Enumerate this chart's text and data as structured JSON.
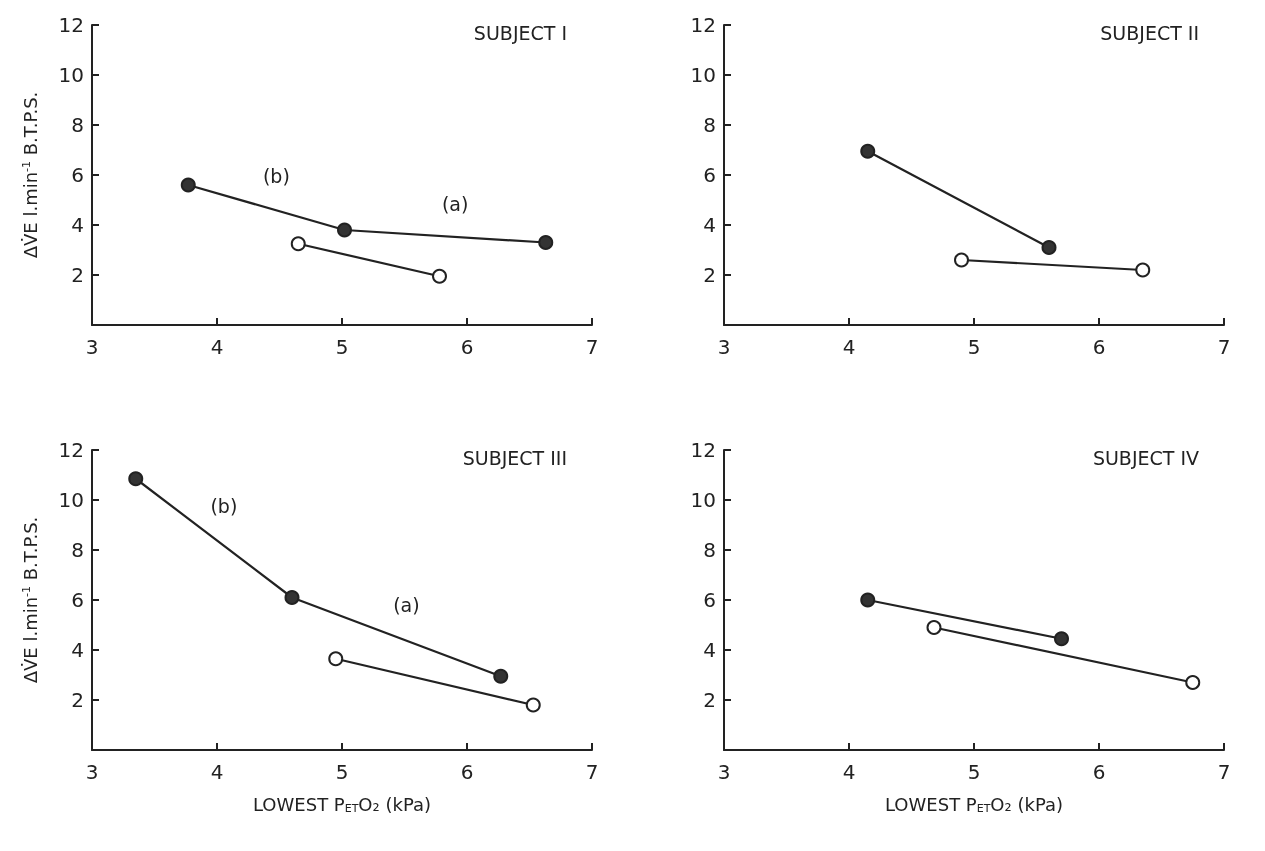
{
  "chart_data": [
    {
      "type": "line",
      "title": "SUBJECT I",
      "ylabel": "ΔV̇E l.min$^{-1}$ B.T.P.S.",
      "xlim": [
        3,
        7
      ],
      "xticks": [
        3,
        4,
        5,
        6,
        7
      ],
      "ylim": [
        0,
        12
      ],
      "yticks": [
        2,
        4,
        6,
        8,
        10,
        12
      ],
      "grid": false,
      "marker": "circle",
      "annotations": [
        "(b)",
        "(a)"
      ],
      "series": [
        {
          "color": "#333333",
          "x": [
            3.77,
            5.02,
            6.63
          ],
          "values": [
            5.6,
            3.8,
            3.3
          ]
        },
        {
          "color": "#ffffff",
          "x": [
            4.65,
            5.78
          ],
          "values": [
            3.25,
            1.95
          ]
        }
      ]
    },
    {
      "type": "line",
      "title": "SUBJECT II",
      "xlim": [
        3,
        7
      ],
      "xticks": [
        3,
        4,
        5,
        6,
        7
      ],
      "ylim": [
        0,
        12
      ],
      "yticks": [
        2,
        4,
        6,
        8,
        10,
        12
      ],
      "grid": false,
      "marker": "circle",
      "series": [
        {
          "color": "#333333",
          "x": [
            4.15,
            5.6
          ],
          "values": [
            6.95,
            3.1
          ]
        },
        {
          "color": "#ffffff",
          "x": [
            4.9,
            6.35
          ],
          "values": [
            2.6,
            2.2
          ]
        }
      ]
    },
    {
      "type": "line",
      "title": "SUBJECT III",
      "xlabel": "LOWEST P$_{ET}$O₂ (kPa)",
      "ylabel": "ΔV̇E l.min$^{-1}$ B.T.P.S.",
      "xlim": [
        3,
        7
      ],
      "xticks": [
        3,
        4,
        5,
        6,
        7
      ],
      "ylim": [
        0,
        12
      ],
      "yticks": [
        2,
        4,
        6,
        8,
        10,
        12
      ],
      "grid": false,
      "marker": "circle",
      "annotations": [
        "(b)",
        "(a)"
      ],
      "series": [
        {
          "color": "#333333",
          "x": [
            3.35,
            4.6,
            6.27
          ],
          "values": [
            10.85,
            6.1,
            2.95
          ]
        },
        {
          "color": "#ffffff",
          "x": [
            4.95,
            6.53
          ],
          "values": [
            3.65,
            1.8
          ]
        }
      ]
    },
    {
      "type": "line",
      "title": "SUBJECT IV",
      "xlabel": "LOWEST P$_{ET}$O₂ (kPa)",
      "xlim": [
        3,
        7
      ],
      "xticks": [
        3,
        4,
        5,
        6,
        7
      ],
      "ylim": [
        0,
        12
      ],
      "yticks": [
        2,
        4,
        6,
        8,
        10,
        12
      ],
      "grid": false,
      "marker": "circle",
      "series": [
        {
          "color": "#333333",
          "x": [
            4.15,
            5.7
          ],
          "values": [
            6.0,
            4.45
          ]
        },
        {
          "color": "#ffffff",
          "x": [
            4.68,
            6.75
          ],
          "values": [
            4.9,
            2.7
          ]
        }
      ]
    }
  ]
}
